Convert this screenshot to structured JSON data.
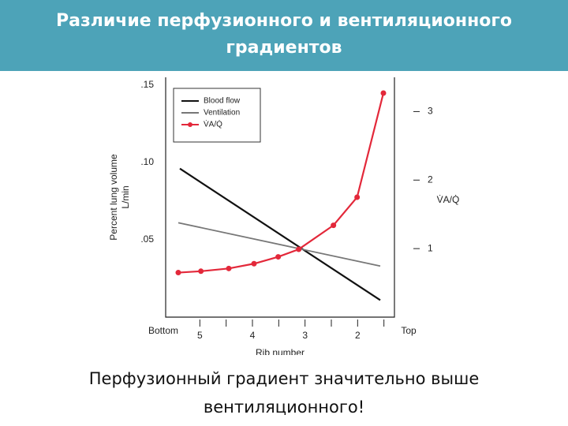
{
  "slide": {
    "title": "Различие перфузионного и вентиляционного градиентов",
    "caption": "Перфузионный градиент значительно выше вентиляционного!"
  },
  "chart_data": {
    "type": "line",
    "xlabel": "Rib number",
    "ylabel": "Percent lung volume",
    "ylabel_unit": "L/min",
    "y2label": "V̇A/Q̇",
    "xlim": [
      5.65,
      1.3
    ],
    "xticks": [
      {
        "value": 5.65,
        "label": "Bottom"
      },
      5,
      4,
      3,
      2,
      {
        "value": 1.3,
        "label": "Top"
      }
    ],
    "minor_xticks": [
      4.5,
      3.5,
      2.5,
      1.5
    ],
    "ylim": [
      0,
      0.155
    ],
    "yticks": [
      {
        "value": 0.05,
        "label": ".05"
      },
      {
        "value": 0.1,
        "label": ".10"
      },
      {
        "value": 0.15,
        "label": ".15"
      }
    ],
    "y2lim": [
      0,
      3.5
    ],
    "y2ticks": [
      1,
      2,
      3
    ],
    "legend": "upper left",
    "series": [
      {
        "name": "Blood flow",
        "color": "#111111",
        "x": [
          5.38,
          1.57
        ],
        "values": [
          0.096,
          0.011
        ]
      },
      {
        "name": "Ventilation",
        "color": "#777777",
        "x": [
          5.41,
          1.57
        ],
        "values": [
          0.061,
          0.033
        ]
      },
      {
        "name": "V̇A/Q̇",
        "color": "#e3283a",
        "axis": "y2",
        "markers": true,
        "x": [
          5.41,
          4.98,
          4.45,
          3.97,
          3.51,
          3.12,
          2.46,
          2.01,
          1.51
        ],
        "values": [
          0.65,
          0.67,
          0.71,
          0.78,
          0.88,
          0.99,
          1.34,
          1.75,
          3.27
        ]
      }
    ]
  }
}
